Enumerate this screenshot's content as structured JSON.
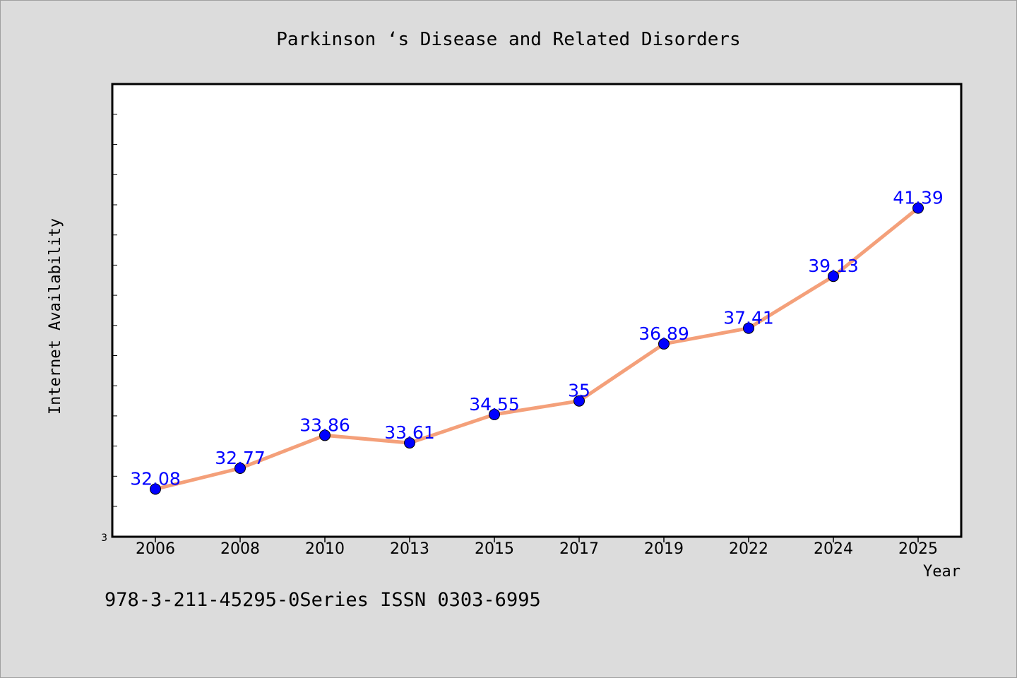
{
  "chart_data": {
    "type": "line",
    "title": "Parkinson ‘s Disease and Related Disorders",
    "xlabel": "Year",
    "ylabel": "Internet Availability",
    "categories": [
      "2006",
      "2008",
      "2010",
      "2013",
      "2015",
      "2017",
      "2019",
      "2022",
      "2024",
      "2025"
    ],
    "series": [
      {
        "values": [
          32.08,
          32.77,
          33.86,
          33.61,
          34.55,
          35,
          36.89,
          37.41,
          39.13,
          41.39
        ],
        "data_labels": [
          "32.08",
          "32.77",
          "33.86",
          "33.61",
          "34.55",
          "35",
          "36.89",
          "37.41",
          "39.13",
          "41.39"
        ]
      }
    ],
    "ylim": [
      30.5,
      45.5
    ],
    "y_tick_labels": [
      "3"
    ],
    "grid": false,
    "line_color": "#f4a07a",
    "marker_color": "#0000ff",
    "label_color": "#0000ff"
  },
  "footnote": "978-3-211-45295-0Series ISSN 0303-6995"
}
